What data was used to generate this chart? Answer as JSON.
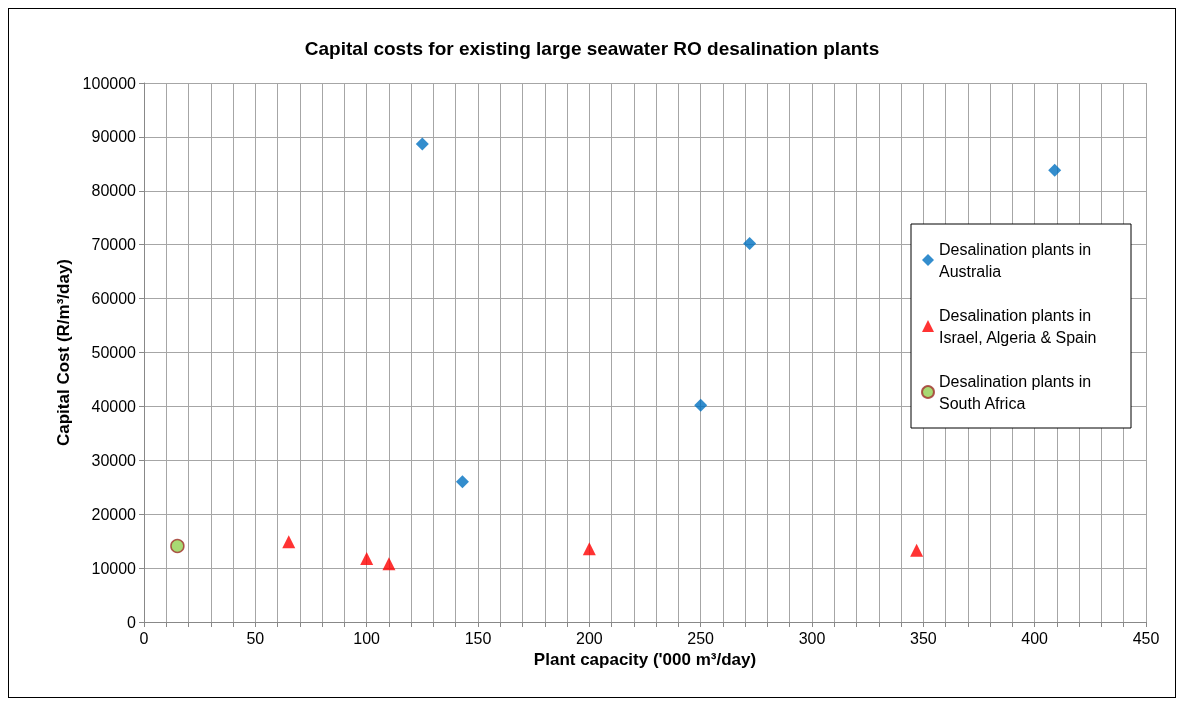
{
  "chart_data": {
    "type": "scatter",
    "title": "Capital costs for existing large seawater RO desalination plants",
    "xlabel": "Plant capacity ('000 m³/day)",
    "ylabel": "Capital Cost (R/m³/day)",
    "xlim": [
      0,
      450
    ],
    "ylim": [
      0,
      100000
    ],
    "xticks": [
      0,
      {
        "value": 10,
        "label": null
      },
      {
        "value": 20,
        "label": null
      },
      {
        "value": 30,
        "label": null
      },
      {
        "value": 40,
        "label": null
      },
      50,
      {
        "value": 60,
        "label": null
      },
      {
        "value": 70,
        "label": null
      },
      {
        "value": 80,
        "label": null
      },
      {
        "value": 90,
        "label": null
      },
      100,
      {
        "value": 110,
        "label": null
      },
      {
        "value": 120,
        "label": null
      },
      {
        "value": 130,
        "label": null
      },
      {
        "value": 140,
        "label": null
      },
      150,
      {
        "value": 160,
        "label": null
      },
      {
        "value": 170,
        "label": null
      },
      {
        "value": 180,
        "label": null
      },
      {
        "value": 190,
        "label": null
      },
      200,
      {
        "value": 210,
        "label": null
      },
      {
        "value": 220,
        "label": null
      },
      {
        "value": 230,
        "label": null
      },
      {
        "value": 240,
        "label": null
      },
      250,
      {
        "value": 260,
        "label": null
      },
      {
        "value": 270,
        "label": null
      },
      {
        "value": 280,
        "label": null
      },
      {
        "value": 290,
        "label": null
      },
      300,
      {
        "value": 310,
        "label": null
      },
      {
        "value": 320,
        "label": null
      },
      {
        "value": 330,
        "label": null
      },
      {
        "value": 340,
        "label": null
      },
      350,
      {
        "value": 360,
        "label": null
      },
      {
        "value": 370,
        "label": null
      },
      {
        "value": 380,
        "label": null
      },
      {
        "value": 390,
        "label": null
      },
      400,
      {
        "value": 410,
        "label": null
      },
      {
        "value": 420,
        "label": null
      },
      {
        "value": 430,
        "label": null
      },
      {
        "value": 440,
        "label": null
      },
      450
    ],
    "yticks": [
      0,
      10000,
      20000,
      30000,
      40000,
      50000,
      60000,
      70000,
      80000,
      90000,
      100000
    ],
    "grid": true,
    "legend": "right",
    "series": [
      {
        "name": "Desalination plants in Australia",
        "color": "#0070c0",
        "marker": "diamond",
        "x": [
          125,
          143,
          250,
          272,
          409
        ],
        "values": [
          88700,
          26000,
          40200,
          70200,
          83800
        ]
      },
      {
        "name": "Desalination plants in Israel, Algeria & Spain",
        "color": "#ff0000",
        "marker": "triangle",
        "x": [
          65,
          100,
          110,
          200,
          347
        ],
        "values": [
          14900,
          11800,
          10800,
          13600,
          13300
        ]
      },
      {
        "name": "Desalination plants in South Africa",
        "color": "#92d050",
        "marker": "circle",
        "x": [
          15
        ],
        "values": [
          14100
        ]
      }
    ]
  }
}
